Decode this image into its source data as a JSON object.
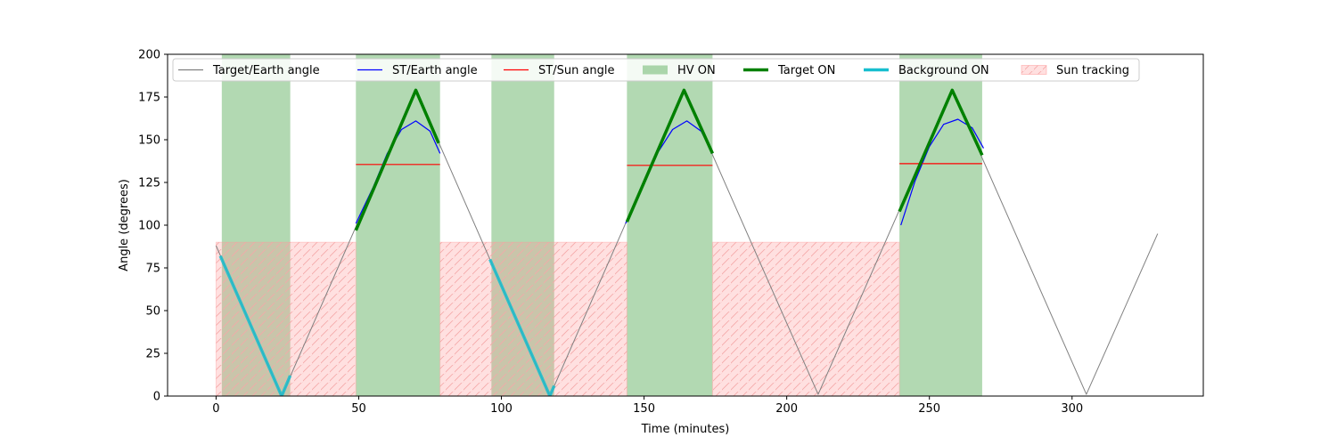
{
  "chart_data": {
    "type": "line",
    "title": "",
    "xlabel": "Time (minutes)",
    "ylabel": "Angle (degrees)",
    "xlim": [
      -17,
      346
    ],
    "ylim": [
      0,
      200
    ],
    "xticks": [
      0,
      50,
      100,
      150,
      200,
      250,
      300
    ],
    "yticks": [
      0,
      25,
      50,
      75,
      100,
      125,
      150,
      175,
      200
    ],
    "grid": false,
    "legend_position": "top",
    "legend": [
      {
        "label": "Target/Earth angle",
        "kind": "line",
        "color": "#808080"
      },
      {
        "label": "ST/Earth angle",
        "kind": "line",
        "color": "#0000ff"
      },
      {
        "label": "ST/Sun angle",
        "kind": "line",
        "color": "#ff0000"
      },
      {
        "label": "HV ON",
        "kind": "patch",
        "color": "#008000"
      },
      {
        "label": "Target ON",
        "kind": "thickline",
        "color": "#008000"
      },
      {
        "label": "Background ON",
        "kind": "thickline",
        "color": "#17becf"
      },
      {
        "label": "Sun tracking",
        "kind": "hatch",
        "color": "#ff9999"
      }
    ],
    "hv_on_intervals": [
      [
        2,
        26
      ],
      [
        49,
        78.5
      ],
      [
        96.5,
        118.5
      ],
      [
        144,
        174
      ],
      [
        239.5,
        268.5
      ]
    ],
    "sun_tracking_intervals": [
      [
        0,
        49
      ],
      [
        78.5,
        144
      ],
      [
        174,
        239.5
      ]
    ],
    "sun_tracking_level": 90,
    "series": [
      {
        "name": "Target/Earth angle",
        "color": "#808080",
        "width": 1,
        "x": [
          0,
          23,
          70,
          117,
          164,
          211,
          258,
          305,
          330
        ],
        "y": [
          88,
          0,
          179,
          0,
          179,
          1,
          179,
          1,
          95
        ]
      },
      {
        "name": "ST/Earth angle",
        "color": "#0000ff",
        "width": 1.2,
        "segments": [
          {
            "x": [
              49,
              55,
              60,
              65,
              70,
              75,
              78.5
            ],
            "y": [
              101,
              122,
              142,
              156,
              161,
              155,
              142
            ]
          },
          {
            "x": [
              143.5,
              150,
              155,
              160,
              165,
              170,
              174
            ],
            "y": [
              101,
              124,
              143,
              156,
              161,
              155,
              142
            ]
          },
          {
            "x": [
              240,
              245,
              250,
              255,
              260,
              265,
              269
            ],
            "y": [
              100,
              126,
              146,
              159,
              162,
              157,
              145
            ]
          }
        ]
      },
      {
        "name": "ST/Sun angle",
        "color": "#ff0000",
        "width": 1.2,
        "segments": [
          {
            "x": [
              49,
              78.5
            ],
            "y": [
              135.5,
              135.5
            ]
          },
          {
            "x": [
              144,
              174
            ],
            "y": [
              135,
              135
            ]
          },
          {
            "x": [
              239.5,
              268.5
            ],
            "y": [
              136,
              136
            ]
          }
        ]
      },
      {
        "name": "Target ON",
        "color": "#008000",
        "width": 3.5,
        "segments": [
          {
            "x": [
              49,
              70,
              78
            ],
            "y": [
              97,
              179,
              148
            ]
          },
          {
            "x": [
              144,
              164,
              174
            ],
            "y": [
              102,
              179,
              142
            ]
          },
          {
            "x": [
              239.5,
              258,
              268.5
            ],
            "y": [
              108,
              179,
              141
            ]
          }
        ]
      },
      {
        "name": "Background ON",
        "color": "#17becf",
        "width": 3.5,
        "segments": [
          {
            "x": [
              1.5,
              23,
              26
            ],
            "y": [
              82,
              0,
              12
            ]
          },
          {
            "x": [
              96,
              117,
              118.5
            ],
            "y": [
              80,
              0,
              6
            ]
          }
        ]
      }
    ]
  }
}
